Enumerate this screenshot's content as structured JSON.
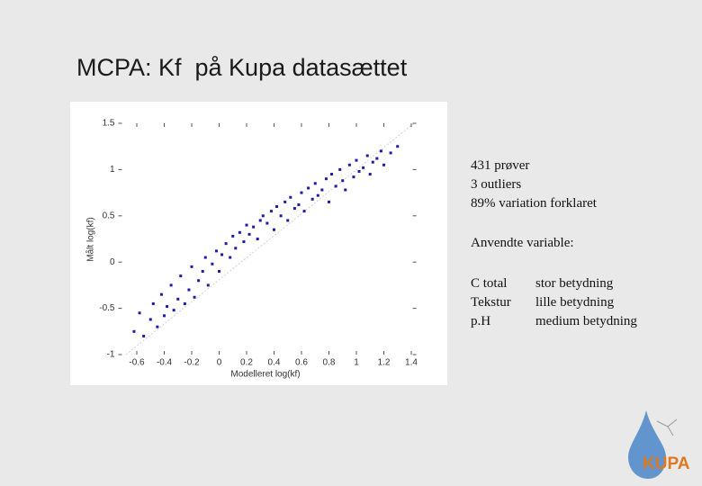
{
  "title": "MCPA: Kf  på Kupa datasættet",
  "chart_data": {
    "type": "scatter",
    "x_label": "Modelleret log(kf)",
    "y_label": "Målt log(kf)",
    "x": [
      -0.62,
      -0.58,
      -0.55,
      -0.5,
      -0.48,
      -0.45,
      -0.42,
      -0.4,
      -0.38,
      -0.35,
      -0.33,
      -0.3,
      -0.28,
      -0.25,
      -0.22,
      -0.2,
      -0.18,
      -0.15,
      -0.12,
      -0.1,
      -0.08,
      -0.05,
      -0.02,
      0,
      0.02,
      0.05,
      0.08,
      0.1,
      0.12,
      0.15,
      0.18,
      0.2,
      0.22,
      0.25,
      0.28,
      0.3,
      0.32,
      0.35,
      0.38,
      0.4,
      0.42,
      0.45,
      0.48,
      0.5,
      0.52,
      0.55,
      0.58,
      0.6,
      0.62,
      0.65,
      0.68,
      0.7,
      0.72,
      0.75,
      0.78,
      0.8,
      0.82,
      0.85,
      0.88,
      0.9,
      0.92,
      0.95,
      0.98,
      1,
      1.02,
      1.05,
      1.08,
      1.1,
      1.12,
      1.15,
      1.18,
      1.2,
      1.25,
      1.3
    ],
    "values": [
      -0.75,
      -0.55,
      -0.8,
      -0.62,
      -0.45,
      -0.7,
      -0.35,
      -0.58,
      -0.48,
      -0.25,
      -0.52,
      -0.4,
      -0.15,
      -0.45,
      -0.3,
      -0.05,
      -0.38,
      -0.2,
      -0.1,
      0.05,
      -0.25,
      -0.02,
      0.12,
      -0.1,
      0.08,
      0.2,
      0.05,
      0.28,
      0.15,
      0.32,
      0.22,
      0.4,
      0.3,
      0.38,
      0.25,
      0.45,
      0.5,
      0.42,
      0.55,
      0.35,
      0.6,
      0.5,
      0.65,
      0.45,
      0.7,
      0.58,
      0.62,
      0.75,
      0.55,
      0.8,
      0.68,
      0.85,
      0.72,
      0.78,
      0.9,
      0.65,
      0.95,
      0.82,
      1.0,
      0.88,
      0.78,
      1.05,
      0.92,
      1.1,
      0.98,
      1.02,
      1.15,
      0.95,
      1.08,
      1.12,
      1.2,
      1.05,
      1.18,
      1.25
    ],
    "color": "#1c1ca8",
    "xlim": [
      -0.8,
      1.45
    ],
    "xticks": [
      -0.6,
      -0.4,
      -0.2,
      0,
      0.2,
      0.4,
      0.6,
      0.8,
      1,
      1.2,
      1.4
    ],
    "ylim": [
      -1,
      1.5
    ],
    "yticks": [
      -1,
      -0.5,
      0,
      0.5,
      1,
      1.5
    ],
    "grid": false
  },
  "notes": [
    "431 prøver",
    "3 outliers",
    "89% variation forklaret"
  ],
  "variables_heading": "Anvendte variable:",
  "variables": [
    [
      "C total",
      "stor betydning"
    ],
    [
      "Tekstur",
      "lille betydning"
    ],
    [
      "p.H",
      "medium betydning"
    ]
  ],
  "logo": "KUPA"
}
